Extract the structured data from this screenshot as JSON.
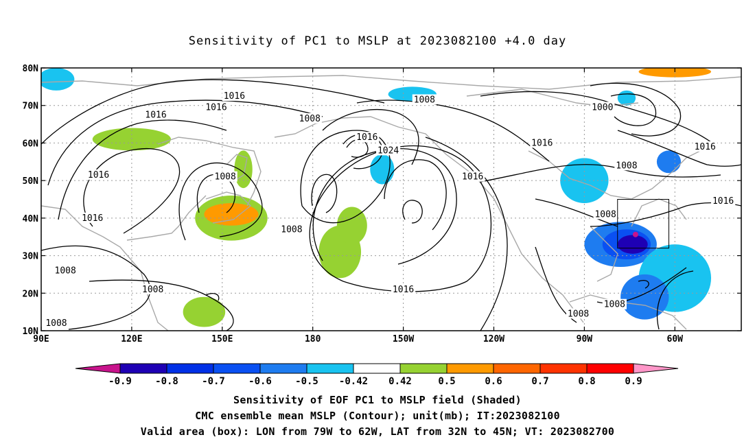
{
  "title": "Sensitivity of PC1 to MSLP at 2023082100 +4.0 day",
  "axes": {
    "lat_labels": [
      "80N",
      "70N",
      "60N",
      "50N",
      "40N",
      "30N",
      "20N",
      "10N"
    ],
    "lon_labels": [
      "90E",
      "120E",
      "150E",
      "180",
      "150W",
      "120W",
      "90W",
      "60W"
    ]
  },
  "contour_labels": [
    {
      "text": "1016",
      "lon": 154,
      "lat": 72.5
    },
    {
      "text": "1016",
      "lon": 148,
      "lat": 69.5
    },
    {
      "text": "1016",
      "lon": 128,
      "lat": 67.5
    },
    {
      "text": "1008",
      "lon": 179,
      "lat": 66.5
    },
    {
      "text": "1008",
      "lon": -143,
      "lat": 71.5
    },
    {
      "text": "1000",
      "lon": -84,
      "lat": 69.5
    },
    {
      "text": "1016",
      "lon": -162,
      "lat": 61.5
    },
    {
      "text": "1024",
      "lon": -155,
      "lat": 58
    },
    {
      "text": "1016",
      "lon": -104,
      "lat": 60
    },
    {
      "text": "1016",
      "lon": -50,
      "lat": 59
    },
    {
      "text": "1008",
      "lon": -76,
      "lat": 54
    },
    {
      "text": "1016",
      "lon": 109,
      "lat": 51.5
    },
    {
      "text": "1008",
      "lon": 151,
      "lat": 51
    },
    {
      "text": "1016",
      "lon": -127,
      "lat": 51
    },
    {
      "text": "1016",
      "lon": -44,
      "lat": 44.5
    },
    {
      "text": "1016",
      "lon": 107,
      "lat": 40
    },
    {
      "text": "1008",
      "lon": 173,
      "lat": 37
    },
    {
      "text": "1008",
      "lon": -83,
      "lat": 41
    },
    {
      "text": "1008",
      "lon": 98,
      "lat": 26
    },
    {
      "text": "1008",
      "lon": 127,
      "lat": 21
    },
    {
      "text": "1016",
      "lon": -150,
      "lat": 21
    },
    {
      "text": "1008",
      "lon": -80,
      "lat": 17
    },
    {
      "text": "1008",
      "lon": -92,
      "lat": 14.5
    },
    {
      "text": "1008",
      "lon": 95,
      "lat": 12
    }
  ],
  "valid_box": {
    "lon_from": -79,
    "lon_to": -62,
    "lat_from": 32,
    "lat_to": 45
  },
  "colorbar": {
    "labels": [
      "-0.9",
      "-0.8",
      "-0.7",
      "-0.6",
      "-0.5",
      "-0.42",
      "0.42",
      "0.5",
      "0.6",
      "0.7",
      "0.8",
      "0.9"
    ],
    "colors": [
      "#1e00b4",
      "#0030e6",
      "#0a50f2",
      "#1e7cf0",
      "#19c3f0",
      "#ffffff",
      "#96d232",
      "#ff9a00",
      "#ff6600",
      "#ff3300",
      "#ff0000"
    ],
    "low_color": "#c8148c",
    "high_color": "#ff96c8"
  },
  "shading": [
    {
      "lon": -78,
      "lat": 33,
      "rlon": 12,
      "rlat": 6,
      "color": "#1e7cf0"
    },
    {
      "lon": -76,
      "lat": 33,
      "rlon": 8,
      "rlat": 4,
      "color": "#0a50f2"
    },
    {
      "lon": -74,
      "lat": 33,
      "rlon": 5,
      "rlat": 2.5,
      "color": "#1e00b4"
    },
    {
      "lon": -60,
      "lat": 24,
      "rlon": 12,
      "rlat": 9,
      "color": "#19c3f0"
    },
    {
      "lon": -70,
      "lat": 19,
      "rlon": 8,
      "rlat": 6,
      "color": "#1e7cf0"
    },
    {
      "lon": -90,
      "lat": 50,
      "rlon": 8,
      "rlat": 6,
      "color": "#19c3f0"
    },
    {
      "lon": -62,
      "lat": 55,
      "rlon": 4,
      "rlat": 3,
      "color": "#1e7cf0"
    },
    {
      "lon": -157,
      "lat": 53,
      "rlon": 4,
      "rlat": 4,
      "color": "#19c3f0"
    },
    {
      "lon": -147,
      "lat": 73,
      "rlon": 8,
      "rlat": 2,
      "color": "#19c3f0"
    },
    {
      "lon": 95,
      "lat": 77,
      "rlon": 6,
      "rlat": 3,
      "color": "#19c3f0"
    },
    {
      "lon": -76,
      "lat": 72,
      "rlon": 3,
      "rlat": 2,
      "color": "#19c3f0"
    },
    {
      "lon": -60,
      "lat": 79,
      "rlon": 12,
      "rlat": 1.5,
      "color": "#ff9a00"
    },
    {
      "lon": 120,
      "lat": 61,
      "rlon": 13,
      "rlat": 3,
      "color": "#96d232"
    },
    {
      "lon": 153,
      "lat": 40,
      "rlon": 12,
      "rlat": 6,
      "color": "#96d232"
    },
    {
      "lon": 153,
      "lat": 41,
      "rlon": 9,
      "rlat": 3,
      "color": "#ff9a00"
    },
    {
      "lon": 157,
      "lat": 53,
      "rlon": 3,
      "rlat": 5,
      "color": "#96d232"
    },
    {
      "lon": -171,
      "lat": 31,
      "rlon": 7,
      "rlat": 7,
      "color": "#96d232"
    },
    {
      "lon": -167,
      "lat": 38,
      "rlon": 5,
      "rlat": 5,
      "color": "#96d232"
    },
    {
      "lon": 144,
      "lat": 15,
      "rlon": 7,
      "rlat": 4,
      "color": "#96d232"
    }
  ],
  "caption_lines": [
    "Sensitivity of EOF PC1 to MSLP field (Shaded)",
    "CMC ensemble mean MSLP (Contour); unit(mb); IT:2023082100",
    "Valid area (box): LON from 79W to 62W, LAT from 32N to 45N; VT: 2023082700"
  ]
}
